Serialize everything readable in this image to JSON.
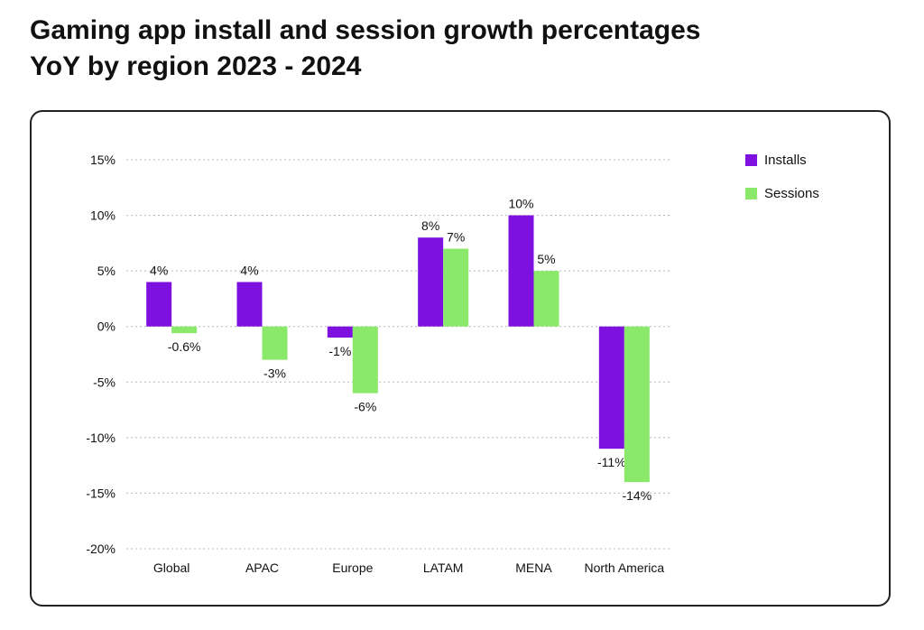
{
  "title_lines": [
    "Gaming app install and session growth percentages",
    "YoY by region 2023 - 2024"
  ],
  "colors": {
    "installs": "#7E10E0",
    "sessions": "#8AE86A",
    "grid": "#b8b8b8"
  },
  "chart_data": {
    "type": "bar",
    "title": "Gaming app install and session growth percentages YoY by region 2023 - 2024",
    "xlabel": "",
    "ylabel": "",
    "ylim": [
      -20,
      15
    ],
    "yticks": [
      15,
      10,
      5,
      0,
      -5,
      -10,
      -15,
      -20
    ],
    "ytick_labels": [
      "15%",
      "10%",
      "5%",
      "0%",
      "-5%",
      "-10%",
      "-15%",
      "-20%"
    ],
    "grid": true,
    "legend_position": "top-right",
    "categories": [
      "Global",
      "APAC",
      "Europe",
      "LATAM",
      "MENA",
      "North America"
    ],
    "series": [
      {
        "name": "Installs",
        "values": [
          4,
          4,
          -1,
          8,
          10,
          -11
        ],
        "labels": [
          "4%",
          "4%",
          "-1%",
          "8%",
          "10%",
          "-11%"
        ]
      },
      {
        "name": "Sessions",
        "values": [
          -0.6,
          -3,
          -6,
          7,
          5,
          -14
        ],
        "labels": [
          "-0.6%",
          "-3%",
          "-6%",
          "7%",
          "5%",
          "-14%"
        ]
      }
    ]
  }
}
